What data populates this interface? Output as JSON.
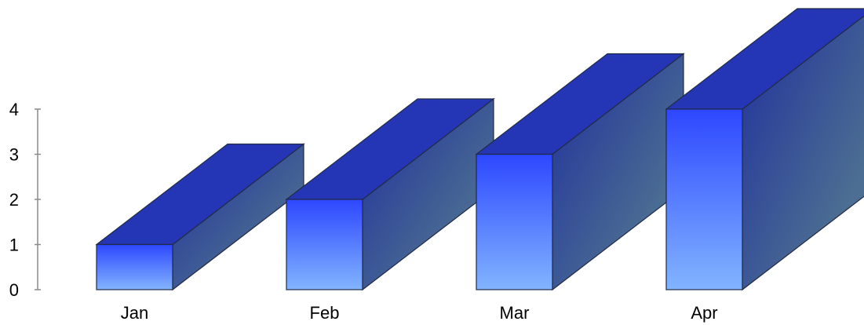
{
  "chart_data": {
    "type": "bar",
    "style": "3d",
    "categories": [
      "Jan",
      "Feb",
      "Mar",
      "Apr"
    ],
    "values": [
      1,
      2,
      3,
      4
    ],
    "title": "",
    "xlabel": "",
    "ylabel": "",
    "ylim": [
      0,
      4
    ],
    "yticks": [
      0,
      1,
      2,
      3,
      4
    ],
    "grid": false,
    "legend": "none",
    "colors": {
      "front_top": "#2d47ff",
      "front_bottom": "#82b4ff",
      "top_face": "#2436b5",
      "side_dark": "#1f2f9c",
      "side_light": "#4c6e92",
      "edge": "#222b44",
      "axis": "#8a8a8a"
    }
  }
}
